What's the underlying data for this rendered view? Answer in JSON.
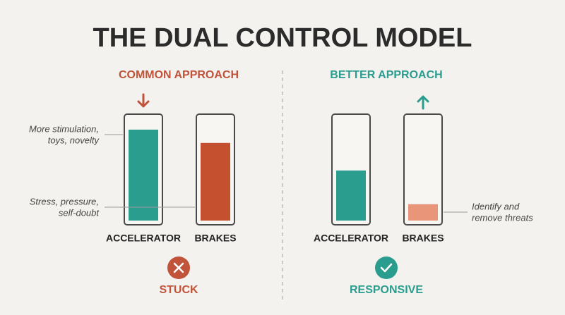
{
  "title": "THE DUAL CONTROL MODEL",
  "panels": [
    {
      "heading": "COMMON APPROACH",
      "color": "#c0533a",
      "arrow": "down",
      "outcome": "STUCK",
      "icon": "cross",
      "gauges": [
        {
          "label": "ACCELERATOR",
          "level": 89,
          "color": "#2a9d8f"
        },
        {
          "label": "BRAKES",
          "level": 76,
          "color": "#c4502f"
        }
      ],
      "notes": [
        {
          "lines": [
            "More stimulation,",
            "toys, novelty"
          ],
          "gauge": 0
        },
        {
          "lines": [
            "Stress, pressure,",
            "self-doubt"
          ],
          "gauge": 1
        }
      ]
    },
    {
      "heading": "BETTER APPROACH",
      "color": "#2a9d8f",
      "arrow": "up",
      "outcome": "RESPONSIVE",
      "icon": "check",
      "gauges": [
        {
          "label": "ACCELERATOR",
          "level": 49,
          "color": "#2a9d8f"
        },
        {
          "label": "BRAKES",
          "level": 16,
          "color": "#e8957a"
        }
      ],
      "notes": [
        {
          "lines": [
            "Identify and",
            "remove threats"
          ],
          "gauge": 1
        }
      ]
    }
  ]
}
